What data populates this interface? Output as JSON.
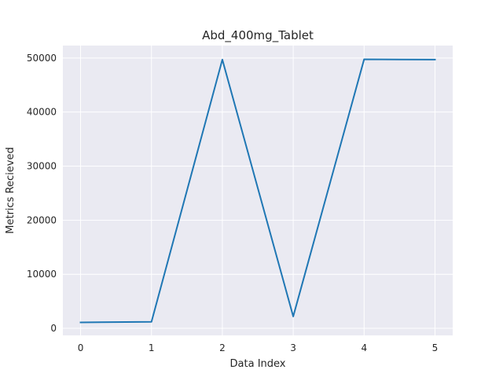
{
  "chart_data": {
    "type": "line",
    "title": "Abd_400mg_Tablet",
    "xlabel": "Data Index",
    "ylabel": "Metrics Recieved",
    "x": [
      0,
      1,
      2,
      3,
      4,
      5
    ],
    "series": [
      {
        "values": [
          1100,
          1200,
          49700,
          2200,
          49750,
          49700
        ],
        "color": "#1f77b4"
      }
    ],
    "xlim": [
      -0.25,
      5.25
    ],
    "ylim": [
      -1300,
      52300
    ],
    "x_ticks": [
      0,
      1,
      2,
      3,
      4,
      5
    ],
    "x_tick_labels": [
      "0",
      "1",
      "2",
      "3",
      "4",
      "5"
    ],
    "y_ticks": [
      0,
      10000,
      20000,
      30000,
      40000,
      50000
    ],
    "y_tick_labels": [
      "0",
      "10000",
      "20000",
      "30000",
      "40000",
      "50000"
    ],
    "grid": true,
    "background_color": "#eaeaf2",
    "grid_color": "#ffffff"
  }
}
